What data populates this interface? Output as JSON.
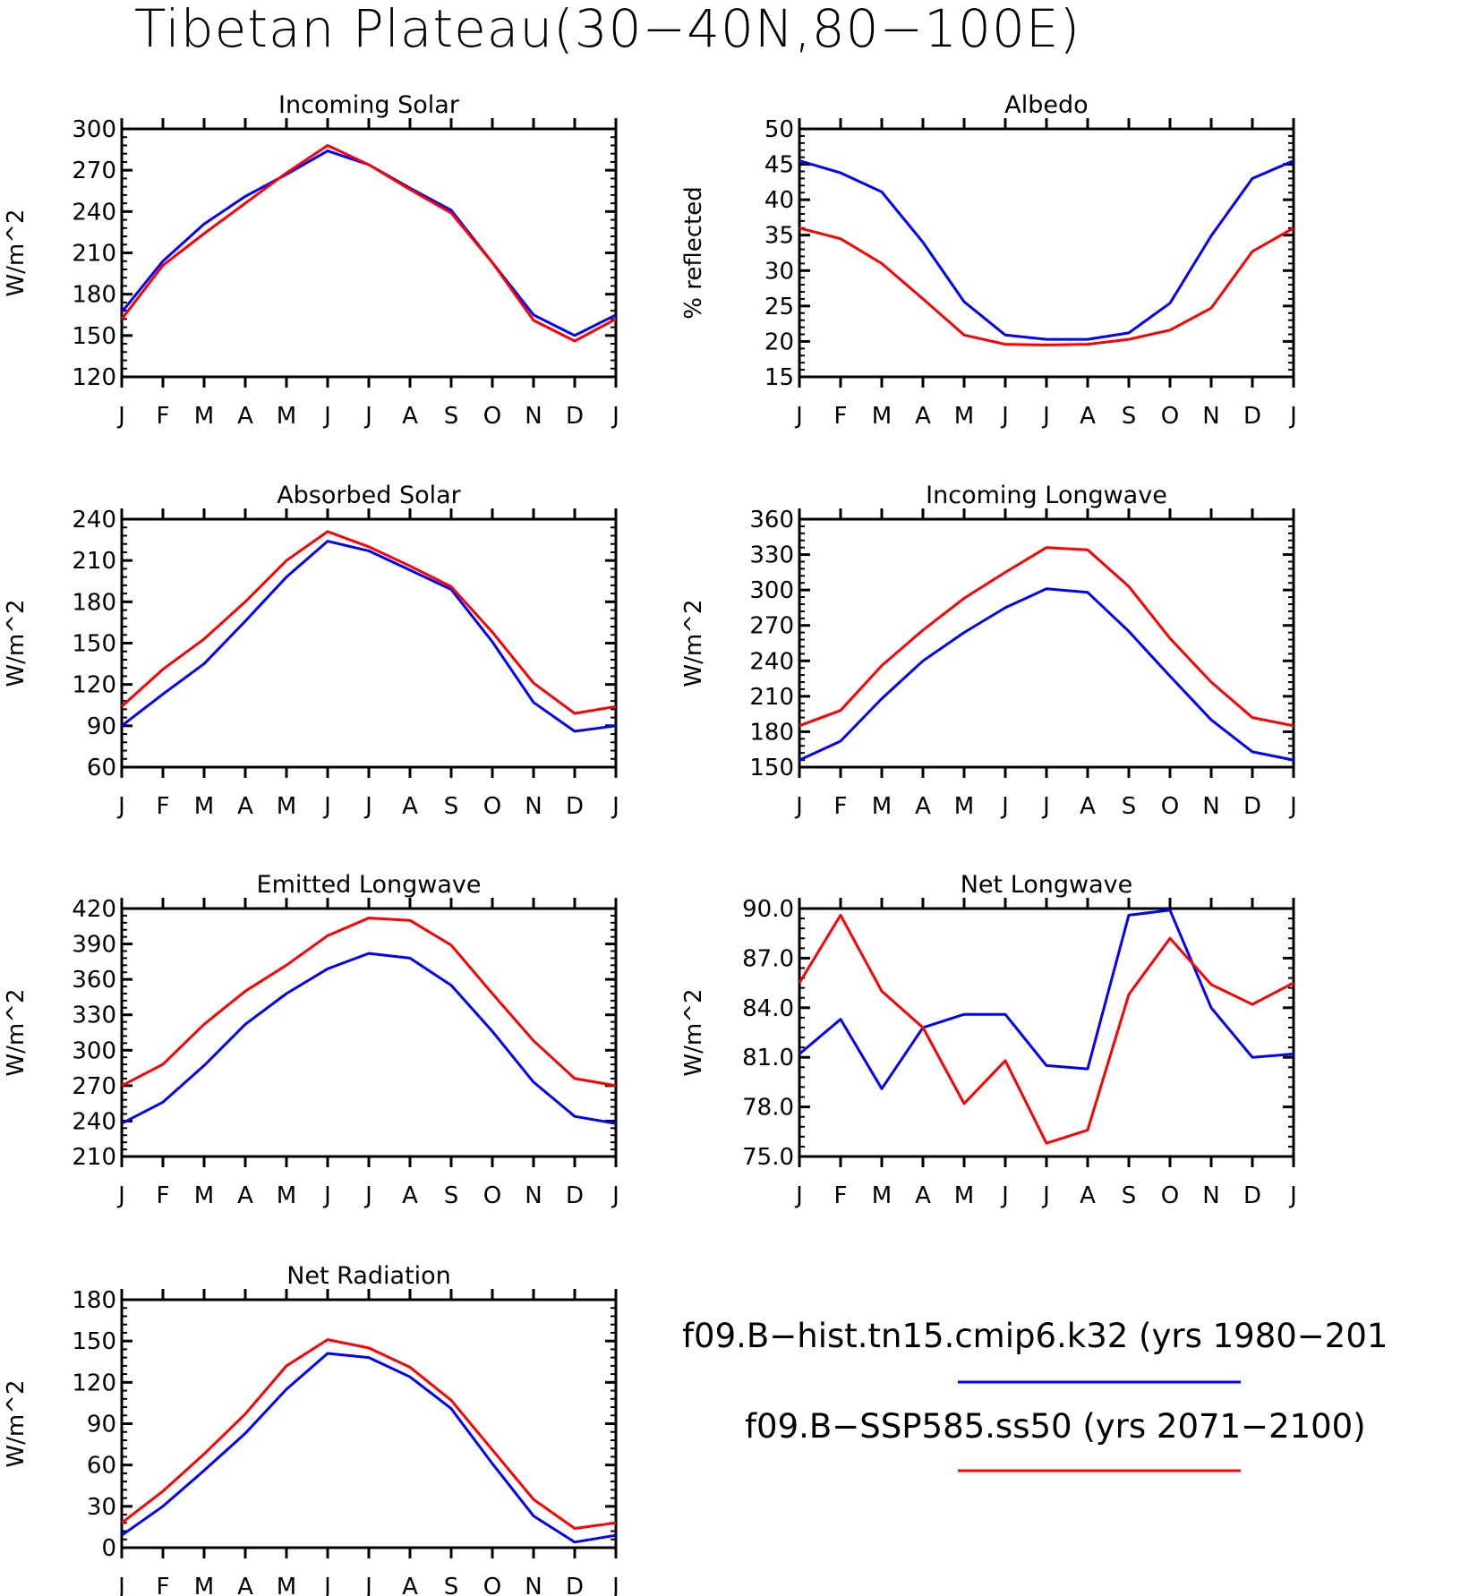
{
  "title": "Tibetan Plateau(30−40N,80−100E)",
  "legend": [
    {
      "label": "f09.B−hist.tn15.cmip6.k32 (yrs 1980−201",
      "color": "#0000ff"
    },
    {
      "label": "f09.B−SSP585.ss50 (yrs 2071−2100)",
      "color": "#ff0000"
    }
  ],
  "chart_data": [
    {
      "type": "line",
      "title": "Incoming Solar",
      "ylabel": "W/m^2",
      "categories": [
        "J",
        "F",
        "M",
        "A",
        "M",
        "J",
        "J",
        "A",
        "S",
        "O",
        "N",
        "D",
        "J"
      ],
      "ylim": [
        120,
        300
      ],
      "yticks": [
        "120",
        "150",
        "180",
        "210",
        "240",
        "270",
        "300"
      ],
      "series": [
        {
          "color": "#0000ff",
          "values": [
            167,
            204,
            231,
            251,
            267,
            284,
            274,
            257,
            241,
            203,
            165,
            150,
            165
          ]
        },
        {
          "color": "#ff0000",
          "values": [
            162,
            201,
            224,
            246,
            268,
            288,
            274,
            256,
            239,
            203,
            161,
            146,
            162
          ]
        }
      ]
    },
    {
      "type": "line",
      "title": "Albedo",
      "ylabel": "% reflected",
      "categories": [
        "J",
        "F",
        "M",
        "A",
        "M",
        "J",
        "J",
        "A",
        "S",
        "O",
        "N",
        "D",
        "J"
      ],
      "ylim": [
        15,
        50
      ],
      "yticks": [
        "15",
        "20",
        "25",
        "30",
        "35",
        "40",
        "45",
        "50"
      ],
      "series": [
        {
          "color": "#0000ff",
          "values": [
            45.5,
            43.8,
            41.1,
            34.0,
            25.6,
            20.9,
            20.3,
            20.3,
            21.2,
            25.4,
            34.9,
            43.0,
            45.5
          ]
        },
        {
          "color": "#ff0000",
          "values": [
            36.0,
            34.5,
            31.0,
            26.0,
            20.9,
            19.6,
            19.5,
            19.6,
            20.3,
            21.6,
            24.7,
            32.7,
            36.0
          ]
        }
      ]
    },
    {
      "type": "line",
      "title": "Absorbed Solar",
      "ylabel": "W/m^2",
      "categories": [
        "J",
        "F",
        "M",
        "A",
        "M",
        "J",
        "J",
        "A",
        "S",
        "O",
        "N",
        "D",
        "J"
      ],
      "ylim": [
        60,
        240
      ],
      "yticks": [
        "60",
        "90",
        "120",
        "150",
        "180",
        "210",
        "240"
      ],
      "series": [
        {
          "color": "#0000ff",
          "values": [
            90,
            113,
            135,
            166,
            198,
            224,
            217,
            203,
            189,
            151,
            107,
            86,
            90
          ]
        },
        {
          "color": "#ff0000",
          "values": [
            104,
            131,
            153,
            180,
            210,
            231,
            220,
            206,
            191,
            158,
            121,
            99,
            104
          ]
        }
      ]
    },
    {
      "type": "line",
      "title": "Incoming Longwave",
      "ylabel": "W/m^2",
      "categories": [
        "J",
        "F",
        "M",
        "A",
        "M",
        "J",
        "J",
        "A",
        "S",
        "O",
        "N",
        "D",
        "J"
      ],
      "ylim": [
        150,
        360
      ],
      "yticks": [
        "150",
        "180",
        "210",
        "240",
        "270",
        "300",
        "330",
        "360"
      ],
      "series": [
        {
          "color": "#0000ff",
          "values": [
            156,
            172,
            208,
            240,
            264,
            285,
            301,
            298,
            265,
            227,
            190,
            163,
            156
          ]
        },
        {
          "color": "#ff0000",
          "values": [
            185,
            198,
            236,
            266,
            293,
            315,
            336,
            334,
            303,
            259,
            222,
            192,
            185
          ]
        }
      ]
    },
    {
      "type": "line",
      "title": "Emitted Longwave",
      "ylabel": "W/m^2",
      "categories": [
        "J",
        "F",
        "M",
        "A",
        "M",
        "J",
        "J",
        "A",
        "S",
        "O",
        "N",
        "D",
        "J"
      ],
      "ylim": [
        210,
        420
      ],
      "yticks": [
        "210",
        "240",
        "270",
        "300",
        "330",
        "360",
        "390",
        "420"
      ],
      "series": [
        {
          "color": "#0000ff",
          "values": [
            238,
            256,
            287,
            322,
            348,
            369,
            382,
            378,
            355,
            316,
            273,
            244,
            238
          ]
        },
        {
          "color": "#ff0000",
          "values": [
            270,
            288,
            322,
            350,
            372,
            397,
            412,
            410,
            389,
            348,
            308,
            276,
            270
          ]
        }
      ]
    },
    {
      "type": "line",
      "title": "Net Longwave",
      "ylabel": "W/m^2",
      "categories": [
        "J",
        "F",
        "M",
        "A",
        "M",
        "J",
        "J",
        "A",
        "S",
        "O",
        "N",
        "D",
        "J"
      ],
      "ylim": [
        75,
        90
      ],
      "yticks": [
        "75.0",
        "78.0",
        "81.0",
        "84.0",
        "87.0",
        "90.0"
      ],
      "series": [
        {
          "color": "#0000ff",
          "values": [
            81.2,
            83.3,
            79.1,
            82.8,
            83.6,
            83.6,
            80.5,
            80.3,
            89.6,
            89.9,
            84.0,
            81.0,
            81.2
          ]
        },
        {
          "color": "#ff0000",
          "values": [
            85.5,
            89.6,
            85.0,
            82.8,
            78.2,
            80.8,
            75.8,
            76.6,
            84.8,
            88.2,
            85.4,
            84.2,
            85.5
          ]
        }
      ]
    },
    {
      "type": "line",
      "title": "Net Radiation",
      "ylabel": "W/m^2",
      "categories": [
        "J",
        "F",
        "M",
        "A",
        "M",
        "J",
        "J",
        "A",
        "S",
        "O",
        "N",
        "D",
        "J"
      ],
      "ylim": [
        0,
        180
      ],
      "yticks": [
        "0",
        "30",
        "60",
        "90",
        "120",
        "150",
        "180"
      ],
      "series": [
        {
          "color": "#0000ff",
          "values": [
            9,
            30,
            56,
            83,
            115,
            141,
            138,
            124,
            101,
            61,
            23,
            4,
            9
          ]
        },
        {
          "color": "#ff0000",
          "values": [
            18,
            41,
            68,
            97,
            132,
            151,
            145,
            131,
            107,
            71,
            35,
            14,
            18
          ]
        }
      ]
    }
  ]
}
